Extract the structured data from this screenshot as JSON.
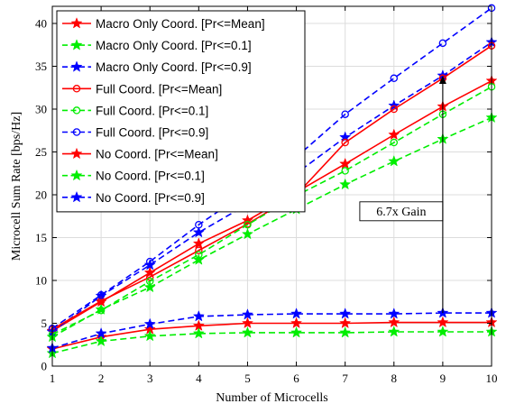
{
  "chart_data": {
    "type": "line",
    "xlabel": "Number of Microcells",
    "ylabel": "Microcell Sum Rate [bps/Hz]",
    "xlim": [
      1,
      10
    ],
    "ylim": [
      0,
      42
    ],
    "x_ticks": [
      1,
      2,
      3,
      4,
      5,
      6,
      7,
      8,
      9,
      10
    ],
    "y_ticks": [
      0,
      5,
      10,
      15,
      20,
      25,
      30,
      35,
      40
    ],
    "grid": true,
    "legend_position": "top-left",
    "x": [
      1,
      2,
      3,
      4,
      5,
      6,
      7,
      8,
      9,
      10
    ],
    "series": [
      {
        "name": "Macro Only Coord. [Pr<=Mean]",
        "color": "#ff0000",
        "line": "solid",
        "marker": "star",
        "values": [
          4.1,
          7.5,
          10.9,
          14.3,
          17.0,
          20.3,
          23.6,
          27.0,
          30.3,
          33.3
        ]
      },
      {
        "name": "Macro Only Coord. [Pr<=0.1]",
        "color": "#00ee00",
        "line": "dashed",
        "marker": "star",
        "values": [
          3.4,
          6.6,
          9.2,
          12.4,
          15.4,
          18.3,
          21.2,
          23.9,
          26.5,
          29.0
        ]
      },
      {
        "name": "Macro Only Coord. [Pr<=0.9]",
        "color": "#0000ff",
        "line": "dashed",
        "marker": "star",
        "values": [
          4.0,
          8.2,
          11.8,
          15.6,
          18.9,
          22.5,
          26.7,
          30.4,
          33.9,
          37.8
        ]
      },
      {
        "name": "Full Coord. [Pr<=Mean]",
        "color": "#ff0000",
        "line": "solid",
        "marker": "circle",
        "values": [
          4.3,
          7.6,
          10.4,
          13.5,
          16.6,
          20.0,
          26.1,
          30.0,
          33.6,
          37.4
        ]
      },
      {
        "name": "Full Coord. [Pr<=0.1]",
        "color": "#00ee00",
        "line": "dashed",
        "marker": "circle",
        "values": [
          3.7,
          6.5,
          9.9,
          13.0,
          16.5,
          19.9,
          22.8,
          26.1,
          29.4,
          32.6
        ]
      },
      {
        "name": "Full Coord. [Pr<=0.9]",
        "color": "#0000ff",
        "line": "dashed",
        "marker": "circle",
        "values": [
          4.4,
          8.3,
          12.2,
          16.5,
          20.4,
          24.4,
          29.4,
          33.6,
          37.7,
          41.8
        ]
      },
      {
        "name": "No Coord. [Pr<=Mean]",
        "color": "#ff0000",
        "line": "solid",
        "marker": "star",
        "values": [
          2.0,
          3.4,
          4.3,
          4.7,
          5.0,
          5.0,
          5.0,
          5.1,
          5.1,
          5.1
        ]
      },
      {
        "name": "No Coord. [Pr<=0.1]",
        "color": "#00ee00",
        "line": "dashed",
        "marker": "star",
        "values": [
          1.5,
          2.9,
          3.5,
          3.8,
          3.9,
          3.9,
          3.9,
          4.0,
          4.0,
          4.0
        ]
      },
      {
        "name": "No Coord. [Pr<=0.9]",
        "color": "#0000ff",
        "line": "dashed",
        "marker": "star",
        "values": [
          2.1,
          3.8,
          4.9,
          5.8,
          6.0,
          6.1,
          6.1,
          6.1,
          6.2,
          6.2
        ]
      }
    ],
    "annotations": [
      {
        "text": "6.7x Gain",
        "x": 8.15,
        "y": 17.6
      },
      {
        "type": "arrow",
        "from": [
          9,
          6.2
        ],
        "to": [
          9,
          33.9
        ]
      }
    ]
  }
}
